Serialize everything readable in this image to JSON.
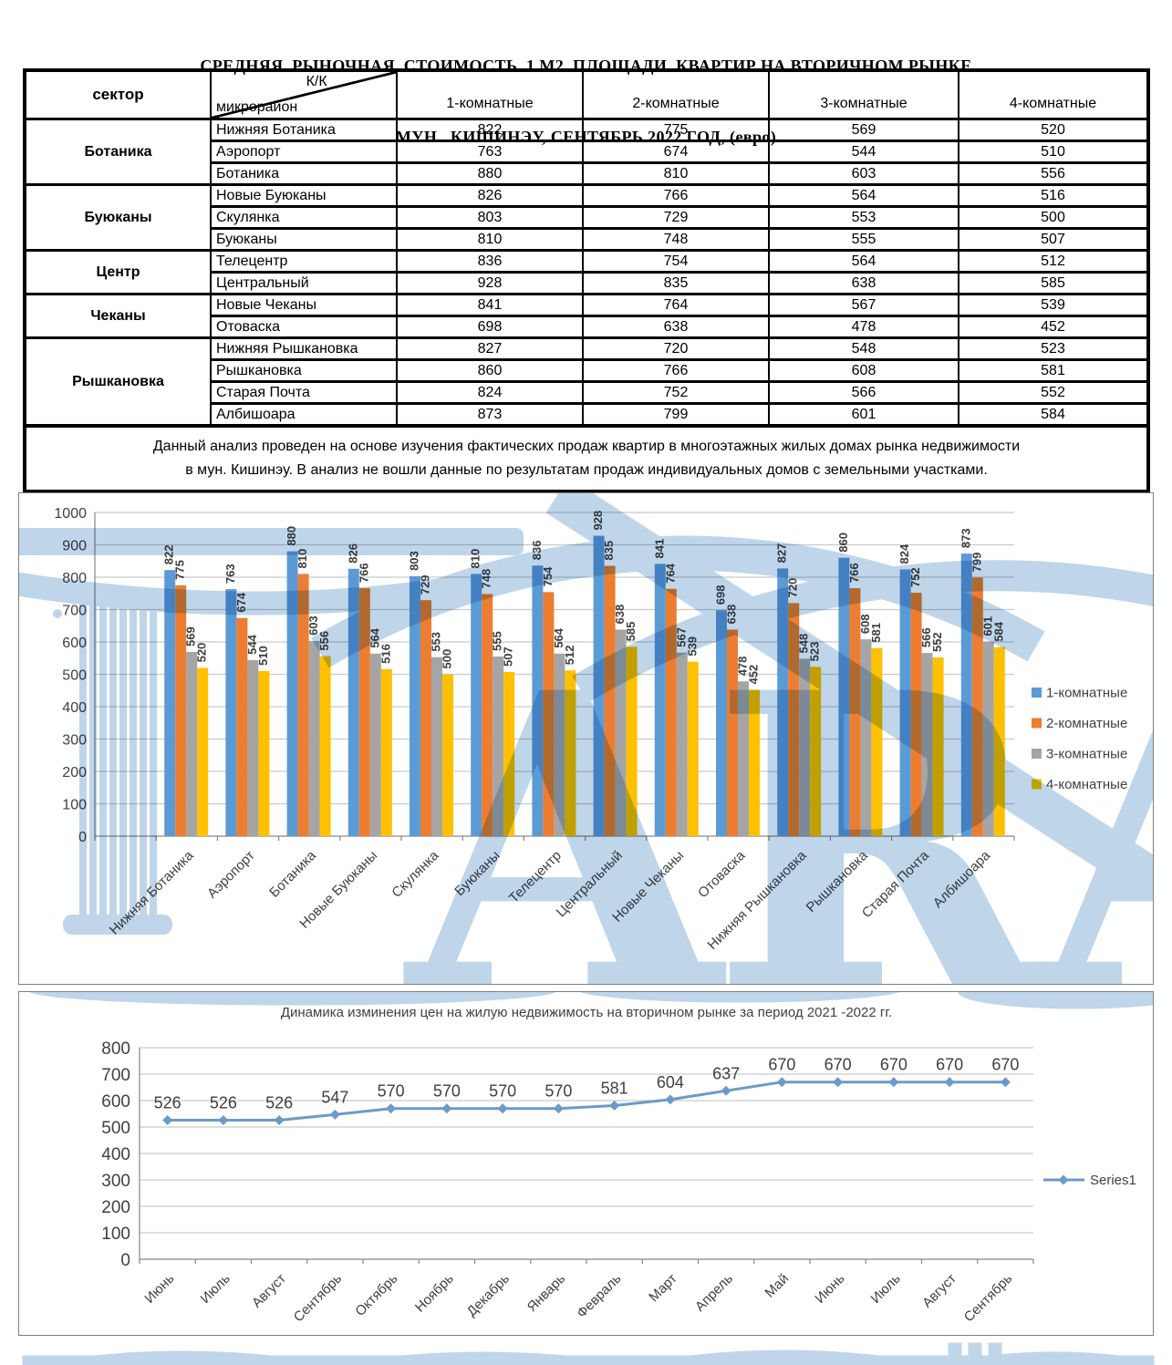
{
  "page": {
    "title_line1": "СРЕДНЯЯ  РЫНОЧНАЯ  СТОИМОСТЬ  1 М2  ПЛОЩАДИ  КВАРТИР НА ВТОРИЧНОМ РЫНКЕ",
    "title_line2": "МУН.  КИШИНЭУ, СЕНТЯБРЬ 2022 ГОД, (евро)"
  },
  "table": {
    "header": {
      "sector": "сектор",
      "diag_top": "К/К",
      "diag_bottom": "микрорайон",
      "cols": [
        "1-комнатные",
        "2-комнатные",
        "3-комнатные",
        "4-комнатные"
      ]
    },
    "groups": [
      {
        "sector": "Ботаника",
        "rows": [
          {
            "district": "Нижняя Ботаника",
            "values": [
              822,
              775,
              569,
              520
            ]
          },
          {
            "district": "Аэропорт",
            "values": [
              763,
              674,
              544,
              510
            ]
          },
          {
            "district": "Ботаника",
            "values": [
              880,
              810,
              603,
              556
            ]
          }
        ]
      },
      {
        "sector": "Буюканы",
        "rows": [
          {
            "district": "Новые Буюканы",
            "values": [
              826,
              766,
              564,
              516
            ]
          },
          {
            "district": "Скулянка",
            "values": [
              803,
              729,
              553,
              500
            ]
          },
          {
            "district": "Буюканы",
            "values": [
              810,
              748,
              555,
              507
            ]
          }
        ]
      },
      {
        "sector": "Центр",
        "rows": [
          {
            "district": "Телецентр",
            "values": [
              836,
              754,
              564,
              512
            ]
          },
          {
            "district": "Центральный",
            "values": [
              928,
              835,
              638,
              585
            ]
          }
        ]
      },
      {
        "sector": "Чеканы",
        "rows": [
          {
            "district": "Новые Чеканы",
            "values": [
              841,
              764,
              567,
              539
            ]
          },
          {
            "district": "Отоваска",
            "values": [
              698,
              638,
              478,
              452
            ]
          }
        ]
      },
      {
        "sector": "Рышкановка",
        "rows": [
          {
            "district": "Нижняя Рышкановка",
            "values": [
              827,
              720,
              548,
              523
            ]
          },
          {
            "district": "Рышкановка",
            "values": [
              860,
              766,
              608,
              581
            ]
          },
          {
            "district": "Старая Почта",
            "values": [
              824,
              752,
              566,
              552
            ]
          },
          {
            "district": "Албишоара",
            "values": [
              873,
              799,
              601,
              584
            ]
          }
        ]
      }
    ],
    "note_line1": "Данный анализ проведен на основе изучения фактических продаж квартир в многоэтажных жилых домах рынка недвижимости",
    "note_line2": "в мун. Кишинэу. В анализ не вошли данные по результатам  продаж индивидуальных домов с земельными участками."
  },
  "chart_data": [
    {
      "type": "bar",
      "title": "",
      "categories": [
        "Нижняя Ботаника",
        "Аэропорт",
        "Ботаника",
        "Новые Буюканы",
        "Скулянка",
        "Буюканы",
        "Телецентр",
        "Центральный",
        "Новые Чеканы",
        "Отоваска",
        "Нижняя Рышкановка",
        "Рышкановка",
        "Старая Почта",
        "Албишоара"
      ],
      "series": [
        {
          "name": "1-комнатные",
          "color": "#5B9BD5",
          "values": [
            822,
            763,
            880,
            826,
            803,
            810,
            836,
            928,
            841,
            698,
            827,
            860,
            824,
            873
          ]
        },
        {
          "name": "2-комнатные",
          "color": "#ED7D31",
          "values": [
            775,
            674,
            810,
            766,
            729,
            748,
            754,
            835,
            764,
            638,
            720,
            766,
            752,
            799
          ]
        },
        {
          "name": "3-комнатные",
          "color": "#A5A5A5",
          "values": [
            569,
            544,
            603,
            564,
            553,
            555,
            564,
            638,
            567,
            478,
            548,
            608,
            566,
            601
          ]
        },
        {
          "name": "4-комнатные",
          "color": "#FFC000",
          "values": [
            520,
            510,
            556,
            516,
            500,
            507,
            512,
            585,
            539,
            452,
            523,
            581,
            552,
            584
          ]
        }
      ],
      "ylim": [
        0,
        1000
      ],
      "ytick_step": 100,
      "grid": true,
      "legend_position": "right",
      "bar_labels_rotated": true
    },
    {
      "type": "line",
      "title": "Динамика изминения цен на жилую недвижимость на вторичном рынке за период 2021 -2022 гг.",
      "categories": [
        "Июнь",
        "Июль",
        "Август",
        "Сентябрь",
        "Октябрь",
        "Ноябрь",
        "Декабрь",
        "Январь",
        "Февраль",
        "Март",
        "Апрель",
        "Май",
        "Июнь",
        "Июль",
        "Август",
        "Сентябрь"
      ],
      "series": [
        {
          "name": "Series1",
          "color": "#6B9BC9",
          "marker": "diamond",
          "values": [
            526,
            526,
            526,
            547,
            570,
            570,
            570,
            570,
            581,
            604,
            637,
            670,
            670,
            670,
            670,
            670
          ]
        }
      ],
      "ylim": [
        0,
        800
      ],
      "ytick_step": 100,
      "grid": true,
      "legend_position": "right"
    }
  ],
  "watermark": {
    "text": "ARA",
    "color": "#BFD5EA"
  },
  "colors": {
    "axis_text": "#404040",
    "gridline": "#C9C9C9",
    "axis_line": "#878787",
    "bar_label": "#3F3F3F"
  }
}
